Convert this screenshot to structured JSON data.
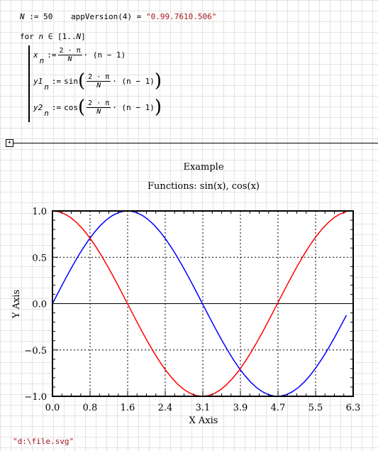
{
  "worksheet": {
    "n_def": {
      "var": "N",
      "assign": ":=",
      "value": "50"
    },
    "app_version": {
      "func": "appVersion",
      "arg": "4",
      "eq": "=",
      "value": "\"0.99.7610.506\""
    },
    "for_loop": {
      "keyword": "for",
      "var": "n",
      "in": "∈",
      "range_open": "[",
      "range_start": "1",
      "range_dots": "..",
      "range_end": "N",
      "range_close": "]"
    },
    "line_x": {
      "name": "x",
      "sub": "n",
      "assign": ":=",
      "num": "2 · π",
      "den": "N",
      "tail": "· (n − 1)"
    },
    "line_y1": {
      "name": "y1",
      "sub": "n",
      "assign": ":=",
      "func": "sin",
      "num": "2 · π",
      "den": "N",
      "tail": "· (n − 1)"
    },
    "line_y2": {
      "name": "y2",
      "sub": "n",
      "assign": ":=",
      "func": "cos",
      "num": "2 · π",
      "den": "N",
      "tail": "· (n − 1)"
    },
    "region_toggle": "⊞",
    "file_path": "\"d:\\file.svg\""
  },
  "chart_data": {
    "type": "line",
    "title": "Example",
    "subtitle": "Functions: sin(x), cos(x)",
    "xlabel": "X Axis",
    "ylabel": "Y Axis",
    "xlim": [
      0,
      6.3
    ],
    "ylim": [
      -1,
      1
    ],
    "xticks": [
      "0.0",
      "0.8",
      "1.6",
      "2.4",
      "3.1",
      "3.9",
      "4.7",
      "5.5",
      "6.3"
    ],
    "yticks": [
      "1.0",
      "0.5",
      "0.0",
      "−0.5",
      "−1.0"
    ],
    "grid": true,
    "samples": 50,
    "x_formula": "2π/N · (n − 1)",
    "series": [
      {
        "values_of": "sin",
        "color": "#0000ff"
      },
      {
        "values_of": "cos",
        "color": "#ff0000"
      }
    ]
  }
}
